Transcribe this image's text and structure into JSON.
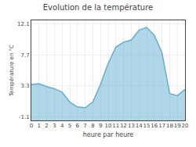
{
  "chart_data": {
    "type": "area",
    "title": "Evolution de la température",
    "x_label": "heure par heure",
    "y_label": "Température en °C",
    "x": [
      0,
      1,
      2,
      3,
      4,
      5,
      6,
      7,
      8,
      9,
      10,
      11,
      12,
      13,
      14,
      15,
      16,
      17,
      18,
      19,
      20
    ],
    "values": [
      3.5,
      3.6,
      3.2,
      2.9,
      2.4,
      1.0,
      0.3,
      0.2,
      1.0,
      3.5,
      6.5,
      8.8,
      9.5,
      9.8,
      11.2,
      11.6,
      10.5,
      8.0,
      2.2,
      1.9,
      2.8
    ],
    "color": "#60b0d0",
    "xlim": [
      0,
      20
    ],
    "xticks": [
      0,
      1,
      2,
      3,
      4,
      5,
      6,
      7,
      8,
      9,
      10,
      11,
      12,
      13,
      14,
      15,
      16,
      17,
      18,
      19,
      20
    ],
    "ylim": [
      -1.6,
      12.6
    ],
    "yticks": [
      -1.1,
      3.3,
      7.7,
      12.1
    ],
    "grid": true
  }
}
